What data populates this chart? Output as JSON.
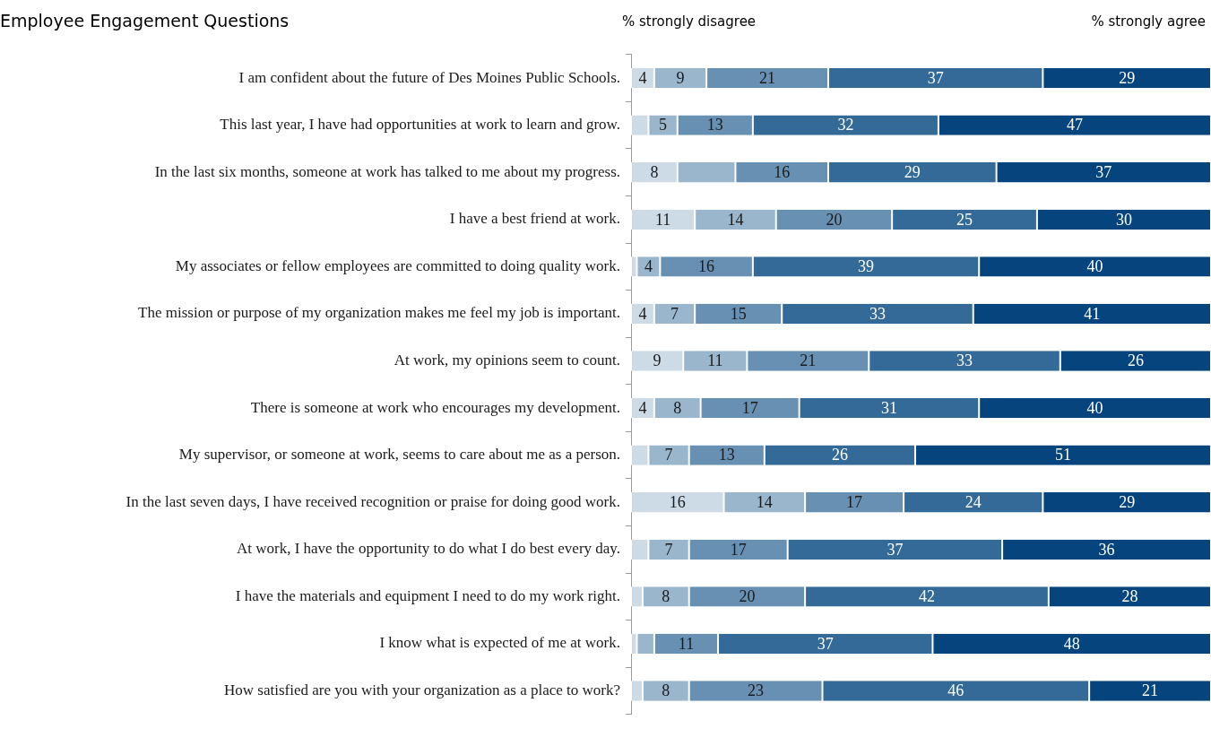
{
  "chart_data": {
    "type": "bar",
    "orientation": "horizontal",
    "stacked": true,
    "title": "Employee Engagement Questions",
    "annotations": [
      "% strongly disagree",
      "% strongly agree"
    ],
    "categories": [
      "I am confident about the future of Des Moines Public Schools.",
      "This last year, I have had opportunities at work to learn and grow.",
      "In the last six months, someone at work has talked to me about my progress.",
      "I have a best friend at work.",
      "My associates or fellow employees are committed to doing quality work.",
      "The mission or purpose of my organization makes me feel my job is important.",
      "At work, my opinions seem to count.",
      "There is someone at work who encourages my development.",
      "My supervisor, or someone at work, seems to care about me as a person.",
      "In the last seven days, I have received recognition or praise for doing good work.",
      "At work, I have the opportunity to do what I do best every day.",
      "I have the materials and equipment I need to do my work right.",
      "I know what is expected of me at work.",
      "How satisfied are you with your organization as a place to work?"
    ],
    "series": [
      {
        "color": "#cddbe6",
        "values": [
          4,
          3,
          8,
          11,
          1,
          4,
          9,
          4,
          3,
          16,
          3,
          2,
          1,
          2
        ],
        "value_labels": [
          "4",
          null,
          "8",
          "11",
          null,
          "4",
          "9",
          "4",
          null,
          "16",
          null,
          null,
          null,
          null
        ]
      },
      {
        "color": "#9ab6cc",
        "values": [
          9,
          5,
          10,
          14,
          4,
          7,
          11,
          8,
          7,
          14,
          7,
          8,
          3,
          8
        ],
        "value_labels": [
          "9",
          "5",
          null,
          "14",
          "4",
          "7",
          "11",
          "8",
          "7",
          "14",
          "7",
          "8",
          null,
          "8"
        ]
      },
      {
        "color": "#6790b2",
        "values": [
          21,
          13,
          16,
          20,
          16,
          15,
          21,
          17,
          13,
          17,
          17,
          20,
          11,
          23
        ],
        "value_labels": [
          "21",
          "13",
          "16",
          "20",
          "16",
          "15",
          "21",
          "17",
          "13",
          "17",
          "17",
          "20",
          "11",
          "23"
        ]
      },
      {
        "color": "#346a97",
        "values": [
          37,
          32,
          29,
          25,
          39,
          33,
          33,
          31,
          26,
          24,
          37,
          42,
          37,
          46
        ],
        "value_labels": [
          "37",
          "32",
          "29",
          "25",
          "39",
          "33",
          "33",
          "31",
          "26",
          "24",
          "37",
          "42",
          "37",
          "46"
        ]
      },
      {
        "color": "#05447d",
        "values": [
          29,
          47,
          37,
          30,
          40,
          41,
          26,
          40,
          51,
          29,
          36,
          28,
          48,
          21
        ],
        "value_labels": [
          "29",
          "47",
          "37",
          "30",
          "40",
          "41",
          "26",
          "40",
          "51",
          "29",
          "36",
          "28",
          "48",
          "21"
        ]
      }
    ]
  }
}
